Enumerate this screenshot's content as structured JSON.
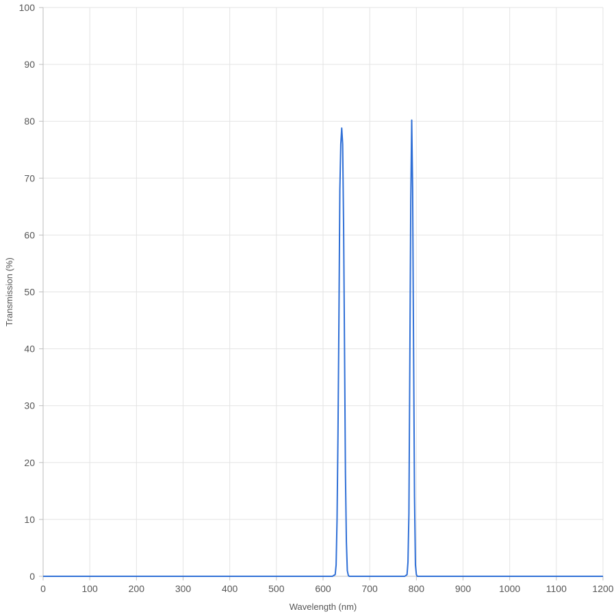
{
  "chart_data": {
    "type": "line",
    "title": "",
    "xlabel": "Wavelength (nm)",
    "ylabel": "Transmission (%)",
    "xlim": [
      0,
      1200
    ],
    "ylim": [
      0,
      100
    ],
    "x_ticks": [
      0,
      100,
      200,
      300,
      400,
      500,
      600,
      700,
      800,
      900,
      1000,
      1100,
      1200
    ],
    "y_ticks": [
      0,
      10,
      20,
      30,
      40,
      50,
      60,
      70,
      80,
      90,
      100
    ],
    "grid": true,
    "legend": "none",
    "series": [
      {
        "color": "#2f6fd6",
        "points": [
          [
            0,
            0
          ],
          [
            620,
            0
          ],
          [
            626,
            0.3
          ],
          [
            628,
            2
          ],
          [
            630,
            10
          ],
          [
            632,
            25
          ],
          [
            634,
            45
          ],
          [
            636,
            68
          ],
          [
            638,
            76
          ],
          [
            640,
            78.8
          ],
          [
            642,
            76
          ],
          [
            644,
            62
          ],
          [
            646,
            40
          ],
          [
            648,
            18
          ],
          [
            650,
            6
          ],
          [
            652,
            1
          ],
          [
            654,
            0.2
          ],
          [
            656,
            0
          ],
          [
            775,
            0
          ],
          [
            780,
            0.3
          ],
          [
            782,
            2.5
          ],
          [
            784,
            11
          ],
          [
            786,
            38
          ],
          [
            788,
            66
          ],
          [
            790,
            80.2
          ],
          [
            792,
            68
          ],
          [
            794,
            40
          ],
          [
            796,
            14
          ],
          [
            798,
            2
          ],
          [
            800,
            0.3
          ],
          [
            802,
            0
          ],
          [
            1200,
            0
          ]
        ]
      }
    ]
  }
}
